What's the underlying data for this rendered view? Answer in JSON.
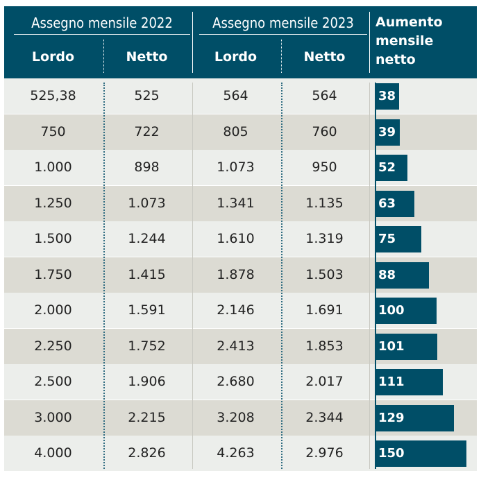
{
  "header": {
    "group_2022": "Assegno mensile 2022",
    "group_2023": "Assegno mensile 2023",
    "lordo": "Lordo",
    "netto": "Netto",
    "increase_title": "Aumento mensile netto"
  },
  "chart_data": {
    "type": "table",
    "title": "",
    "columns": [
      "Assegno mensile 2022 - Lordo",
      "Assegno mensile 2022 - Netto",
      "Assegno mensile 2023 - Lordo",
      "Assegno mensile 2023 - Netto",
      "Aumento mensile netto"
    ],
    "rows": [
      {
        "lordo_2022": "525,38",
        "netto_2022": "525",
        "lordo_2023": "564",
        "netto_2023": "564",
        "aumento": 38
      },
      {
        "lordo_2022": "750",
        "netto_2022": "722",
        "lordo_2023": "805",
        "netto_2023": "760",
        "aumento": 39
      },
      {
        "lordo_2022": "1.000",
        "netto_2022": "898",
        "lordo_2023": "1.073",
        "netto_2023": "950",
        "aumento": 52
      },
      {
        "lordo_2022": "1.250",
        "netto_2022": "1.073",
        "lordo_2023": "1.341",
        "netto_2023": "1.135",
        "aumento": 63
      },
      {
        "lordo_2022": "1.500",
        "netto_2022": "1.244",
        "lordo_2023": "1.610",
        "netto_2023": "1.319",
        "aumento": 75
      },
      {
        "lordo_2022": "1.750",
        "netto_2022": "1.415",
        "lordo_2023": "1.878",
        "netto_2023": "1.503",
        "aumento": 88
      },
      {
        "lordo_2022": "2.000",
        "netto_2022": "1.591",
        "lordo_2023": "2.146",
        "netto_2023": "1.691",
        "aumento": 100
      },
      {
        "lordo_2022": "2.250",
        "netto_2022": "1.752",
        "lordo_2023": "2.413",
        "netto_2023": "1.853",
        "aumento": 101
      },
      {
        "lordo_2022": "2.500",
        "netto_2022": "1.906",
        "lordo_2023": "2.680",
        "netto_2023": "2.017",
        "aumento": 111
      },
      {
        "lordo_2022": "3.000",
        "netto_2022": "2.215",
        "lordo_2023": "3.208",
        "netto_2023": "2.344",
        "aumento": 129
      },
      {
        "lordo_2022": "4.000",
        "netto_2022": "2.826",
        "lordo_2023": "4.263",
        "netto_2023": "2.976",
        "aumento": 150
      }
    ],
    "bar_max": 150
  },
  "colors": {
    "header_bg": "#004e67",
    "bar": "#004e67",
    "row_light": "#eceeeb",
    "row_dark": "#dcdbd3",
    "text": "#222222"
  }
}
